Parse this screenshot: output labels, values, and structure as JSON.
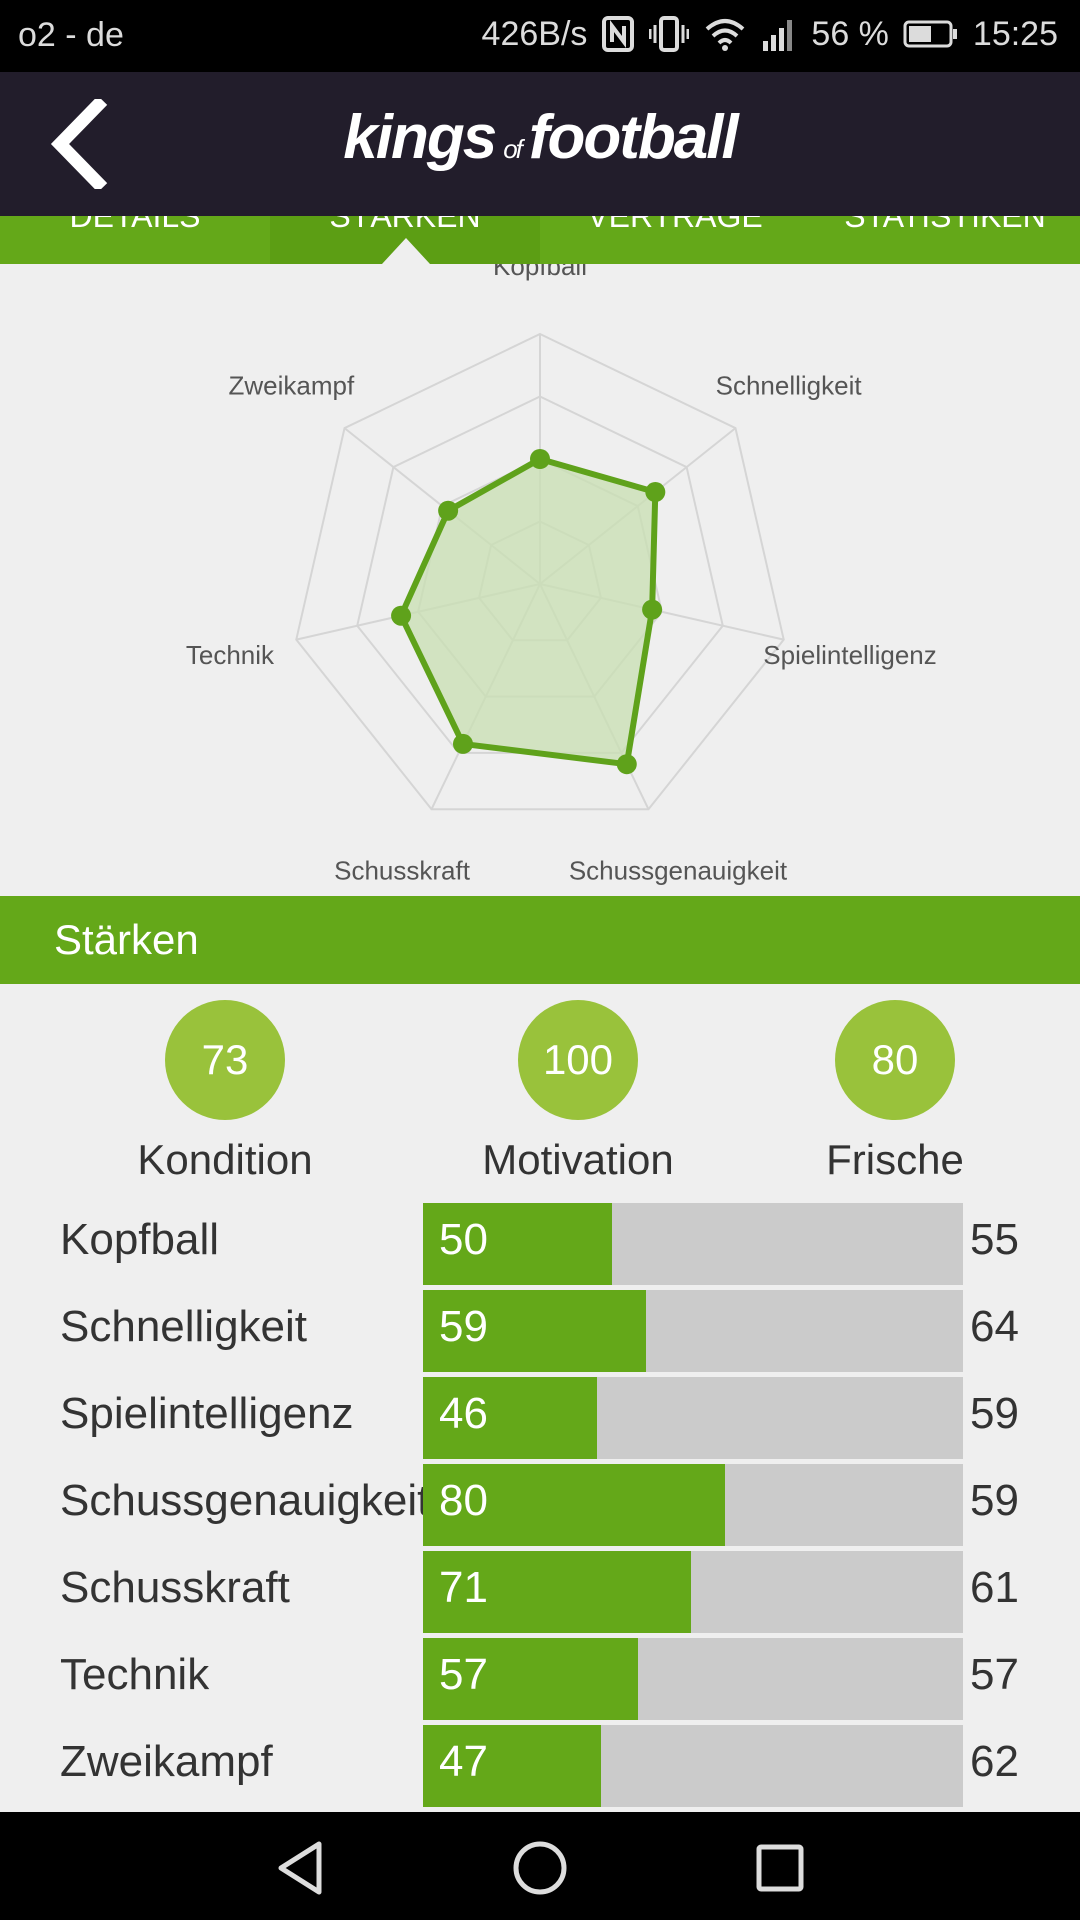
{
  "status_bar": {
    "carrier": "o2 - de",
    "network_speed": "426B/s",
    "battery": "56 %",
    "time": "15:25",
    "icons": [
      "nfc-icon",
      "vibrate-icon",
      "wifi-icon",
      "signal-icon",
      "battery-icon"
    ]
  },
  "header": {
    "logo_part1": "kings",
    "logo_part2": "of",
    "logo_part3": "football",
    "back_icon": "chevron-left-icon"
  },
  "tabs": [
    {
      "label": "DETAILS",
      "active": false
    },
    {
      "label": "STÄRKEN",
      "active": true
    },
    {
      "label": "VERTRÄGE",
      "active": false
    },
    {
      "label": "STATISTIKEN",
      "active": false
    }
  ],
  "radar": {
    "axes": [
      "Kopfball",
      "Schnelligkeit",
      "Spielintelligenz",
      "Schussgenauigkeit",
      "Schusskraft",
      "Technik",
      "Zweikampf"
    ],
    "values": [
      50,
      59,
      46,
      80,
      71,
      57,
      47
    ],
    "max": 100,
    "rings": 4,
    "colors": {
      "line": "#5fa21b",
      "fill": "#c8dfb1",
      "grid": "#d5d5d5"
    }
  },
  "section": {
    "title": "Stärken"
  },
  "metrics": [
    {
      "value": "73",
      "label": "Kondition"
    },
    {
      "value": "100",
      "label": "Motivation"
    },
    {
      "value": "80",
      "label": "Frische"
    }
  ],
  "stats": [
    {
      "name": "Kopfball",
      "value": 50,
      "compare": 55
    },
    {
      "name": "Schnelligkeit",
      "value": 59,
      "compare": 64
    },
    {
      "name": "Spielintelligenz",
      "value": 46,
      "compare": 59
    },
    {
      "name": "Schussgenauigkeit",
      "value": 80,
      "compare": 59
    },
    {
      "name": "Schusskraft",
      "value": 71,
      "compare": 61
    },
    {
      "name": "Technik",
      "value": 57,
      "compare": 57
    },
    {
      "name": "Zweikampf",
      "value": 47,
      "compare": 62
    }
  ],
  "colors": {
    "accent": "#64a819",
    "header_bg": "#221d2b",
    "circle": "#99c23b",
    "track": "#cbcbcb"
  },
  "nav": {
    "icons": [
      "back-triangle-icon",
      "home-circle-icon",
      "recents-square-icon"
    ]
  }
}
